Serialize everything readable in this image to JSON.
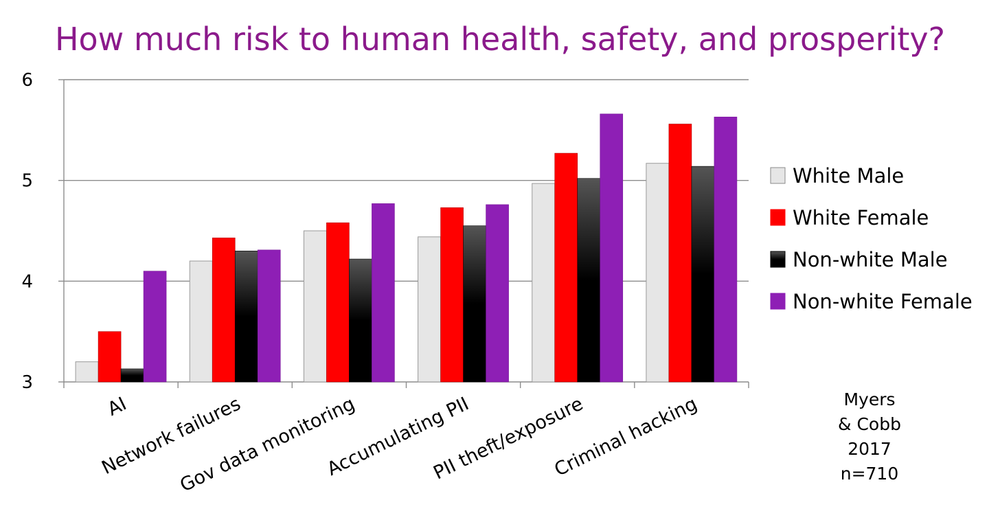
{
  "chart_data": {
    "type": "bar",
    "title": "How much risk to human health, safety, and prosperity?",
    "title_color": "#8B1A8B",
    "categories": [
      "AI",
      "Network failures",
      "Gov data monitoring",
      "Accumulating PII",
      "PII theft/exposure",
      "Criminal hacking"
    ],
    "series": [
      {
        "name": "White Male",
        "color": "#E6E6E6",
        "values": [
          3.2,
          4.2,
          4.5,
          4.44,
          4.97,
          5.17
        ]
      },
      {
        "name": "White Female",
        "color": "#FF0000",
        "values": [
          3.5,
          4.43,
          4.58,
          4.73,
          5.27,
          5.56
        ]
      },
      {
        "name": "Non-white Male",
        "color": "#000000",
        "values": [
          3.13,
          4.3,
          4.22,
          4.55,
          5.02,
          5.14
        ]
      },
      {
        "name": "Non-white Female",
        "color": "#8E1FB5",
        "values": [
          4.1,
          4.31,
          4.77,
          4.76,
          5.66,
          5.63
        ]
      }
    ],
    "yticks": [
      "3",
      "4",
      "5",
      "6"
    ],
    "ylim": [
      3,
      6
    ],
    "grid": true,
    "legend_position": "right"
  },
  "annotation": {
    "lines": [
      "Myers",
      "& Cobb",
      "2017",
      "n=710"
    ]
  }
}
